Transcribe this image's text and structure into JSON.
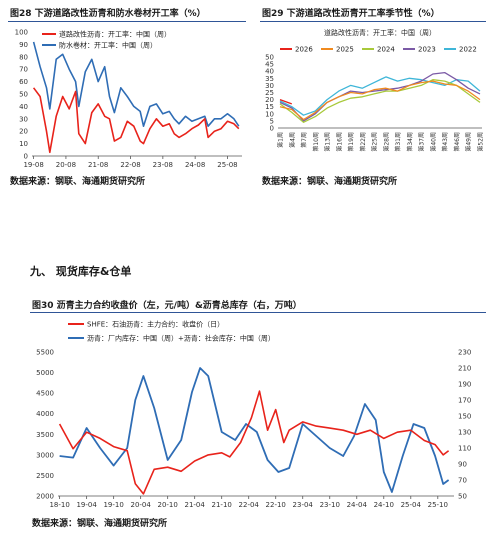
{
  "figures": {
    "fig28": {
      "title": "图28  下游道路改性沥青和防水卷材开工率（%）",
      "source": "数据来源：钢联、海通期货研究所"
    },
    "fig29": {
      "title": "图29  下游道路改性沥青开工率季节性（%）",
      "source": "数据来源：钢联、海通期货研究所"
    },
    "fig30": {
      "title": "图30  沥青主力合约收盘价（左，元/吨）&沥青总库存（右，万吨）",
      "source": "数据来源：钢联、海通期货研究所"
    }
  },
  "section": {
    "heading": "九、   现货库存&仓单"
  },
  "colors": {
    "red": "#e8231b",
    "blue": "#2f6db5",
    "orange": "#f08a1f",
    "green": "#a8c93a",
    "purple": "#7b5aa6",
    "cyan": "#3fb6d8",
    "rule": "#2f5597"
  },
  "chart_data": [
    {
      "type": "line",
      "title": "",
      "x_tick_labels": [
        "19-08",
        "20-08",
        "21-08",
        "22-08",
        "23-08",
        "24-08",
        "25-08"
      ],
      "ylim": [
        0,
        100
      ],
      "y_ticks": [
        0,
        10,
        20,
        30,
        40,
        50,
        60,
        70,
        80,
        90,
        100
      ],
      "legend_position": "top-left",
      "series": [
        {
          "name": "道路改性沥青：开工率：中国（周）",
          "color": "red",
          "x": [
            2019.6,
            2019.8,
            2020.0,
            2020.1,
            2020.3,
            2020.5,
            2020.7,
            2020.9,
            2021.0,
            2021.2,
            2021.4,
            2021.6,
            2021.8,
            2021.95,
            2022.1,
            2022.3,
            2022.5,
            2022.7,
            2022.9,
            2023.0,
            2023.2,
            2023.4,
            2023.6,
            2023.8,
            2023.95,
            2024.1,
            2024.3,
            2024.5,
            2024.7,
            2024.9,
            2025.0,
            2025.2,
            2025.4,
            2025.6,
            2025.8,
            2025.95
          ],
          "values": [
            55,
            48,
            20,
            3,
            32,
            48,
            38,
            52,
            18,
            10,
            35,
            42,
            32,
            30,
            12,
            15,
            28,
            24,
            12,
            10,
            22,
            30,
            24,
            26,
            18,
            15,
            18,
            22,
            25,
            30,
            15,
            20,
            22,
            28,
            26,
            22
          ]
        },
        {
          "name": "防水卷材：开工率：中国（周）",
          "color": "blue",
          "x": [
            2019.6,
            2019.8,
            2020.0,
            2020.1,
            2020.3,
            2020.5,
            2020.7,
            2020.9,
            2021.0,
            2021.2,
            2021.4,
            2021.6,
            2021.8,
            2021.95,
            2022.1,
            2022.3,
            2022.5,
            2022.7,
            2022.9,
            2023.0,
            2023.2,
            2023.4,
            2023.6,
            2023.8,
            2023.95,
            2024.1,
            2024.3,
            2024.5,
            2024.7,
            2024.9,
            2025.0,
            2025.2,
            2025.4,
            2025.6,
            2025.8,
            2025.95
          ],
          "values": [
            92,
            72,
            55,
            38,
            78,
            82,
            70,
            60,
            40,
            68,
            78,
            60,
            72,
            48,
            35,
            55,
            48,
            40,
            36,
            24,
            40,
            42,
            34,
            36,
            30,
            26,
            32,
            28,
            30,
            32,
            24,
            30,
            30,
            34,
            30,
            24
          ]
        }
      ]
    },
    {
      "type": "line",
      "title": "道路改性沥青：开工率：中国（周）",
      "x_tick_labels": [
        "第1周",
        "第4周",
        "第7周",
        "第10周",
        "第13周",
        "第16周",
        "第19周",
        "第22周",
        "第25周",
        "第28周",
        "第31周",
        "第34周",
        "第37周",
        "第40周",
        "第43周",
        "第46周",
        "第49周",
        "第52周"
      ],
      "ylim": [
        0,
        50
      ],
      "y_ticks": [
        0,
        5,
        10,
        15,
        20,
        25,
        30,
        35,
        40,
        45,
        50
      ],
      "legend_position": "top",
      "weeks": [
        1,
        4,
        7,
        10,
        13,
        16,
        19,
        22,
        25,
        28,
        31,
        34,
        37,
        40,
        43,
        46,
        49,
        52
      ],
      "series": [
        {
          "name": "2026",
          "color": "red",
          "values": [
            20,
            17
          ]
        },
        {
          "name": "2025",
          "color": "orange",
          "values": [
            15,
            13,
            6,
            11,
            18,
            22,
            25,
            24,
            27,
            28,
            26,
            30,
            32,
            33,
            31,
            30,
            26,
            20
          ]
        },
        {
          "name": "2024",
          "color": "green",
          "values": [
            17,
            11,
            4,
            8,
            14,
            18,
            21,
            22,
            24,
            26,
            26,
            28,
            30,
            34,
            33,
            30,
            24,
            18
          ]
        },
        {
          "name": "2023",
          "color": "purple",
          "values": [
            18,
            14,
            5,
            10,
            18,
            22,
            26,
            25,
            26,
            27,
            28,
            30,
            33,
            38,
            39,
            34,
            28,
            24
          ]
        },
        {
          "name": "2022",
          "color": "cyan",
          "values": [
            19,
            15,
            9,
            12,
            20,
            26,
            30,
            28,
            32,
            36,
            33,
            35,
            34,
            32,
            30,
            34,
            33,
            26
          ]
        }
      ]
    },
    {
      "type": "line",
      "title": "",
      "x_tick_labels": [
        "18-10",
        "19-04",
        "19-10",
        "20-04",
        "20-10",
        "21-04",
        "21-10",
        "22-04",
        "22-10",
        "23-04",
        "23-10",
        "24-04",
        "24-10",
        "25-04",
        "25-10"
      ],
      "y_left": {
        "ylim": [
          2000,
          5500
        ],
        "ticks": [
          2000,
          2500,
          3000,
          3500,
          4000,
          4500,
          5000,
          5500
        ]
      },
      "y_right": {
        "ylim": [
          50,
          230
        ],
        "ticks": [
          50,
          70,
          90,
          110,
          130,
          150,
          170,
          190,
          210,
          230
        ]
      },
      "legend_position": "top-left",
      "series": [
        {
          "name": "SHFE：石油沥青：主力合约：收盘价（日）",
          "color": "red",
          "axis": "left",
          "x": [
            2018.75,
            2019.0,
            2019.25,
            2019.5,
            2019.75,
            2020.0,
            2020.15,
            2020.3,
            2020.5,
            2020.75,
            2021.0,
            2021.25,
            2021.5,
            2021.75,
            2021.9,
            2022.1,
            2022.3,
            2022.45,
            2022.6,
            2022.75,
            2022.9,
            2023.0,
            2023.25,
            2023.5,
            2023.75,
            2024.0,
            2024.25,
            2024.5,
            2024.75,
            2025.0,
            2025.25,
            2025.5,
            2025.7,
            2025.85,
            2025.95
          ],
          "values": [
            3750,
            3150,
            3550,
            3400,
            3200,
            3100,
            2300,
            2050,
            2650,
            2700,
            2600,
            2850,
            3000,
            3050,
            2950,
            3300,
            3900,
            4550,
            3600,
            4100,
            3300,
            3600,
            3800,
            3700,
            3650,
            3600,
            3500,
            3600,
            3400,
            3550,
            3600,
            3350,
            3250,
            3000,
            3100
          ]
        },
        {
          "name": "沥青：厂内库存：中国（周）+沥青：社会库存：中国（周）",
          "color": "blue",
          "axis": "right",
          "x": [
            2018.75,
            2019.0,
            2019.25,
            2019.5,
            2019.75,
            2020.0,
            2020.15,
            2020.3,
            2020.5,
            2020.75,
            2021.0,
            2021.2,
            2021.35,
            2021.5,
            2021.75,
            2022.0,
            2022.2,
            2022.4,
            2022.6,
            2022.8,
            2023.0,
            2023.25,
            2023.5,
            2023.75,
            2024.0,
            2024.2,
            2024.4,
            2024.6,
            2024.75,
            2024.9,
            2025.1,
            2025.3,
            2025.5,
            2025.7,
            2025.85,
            2025.95
          ],
          "values": [
            100,
            98,
            135,
            110,
            88,
            110,
            170,
            200,
            160,
            95,
            120,
            180,
            210,
            200,
            130,
            120,
            140,
            130,
            95,
            80,
            85,
            140,
            125,
            110,
            100,
            125,
            165,
            145,
            80,
            55,
            100,
            140,
            135,
            100,
            65,
            70
          ]
        }
      ]
    }
  ]
}
